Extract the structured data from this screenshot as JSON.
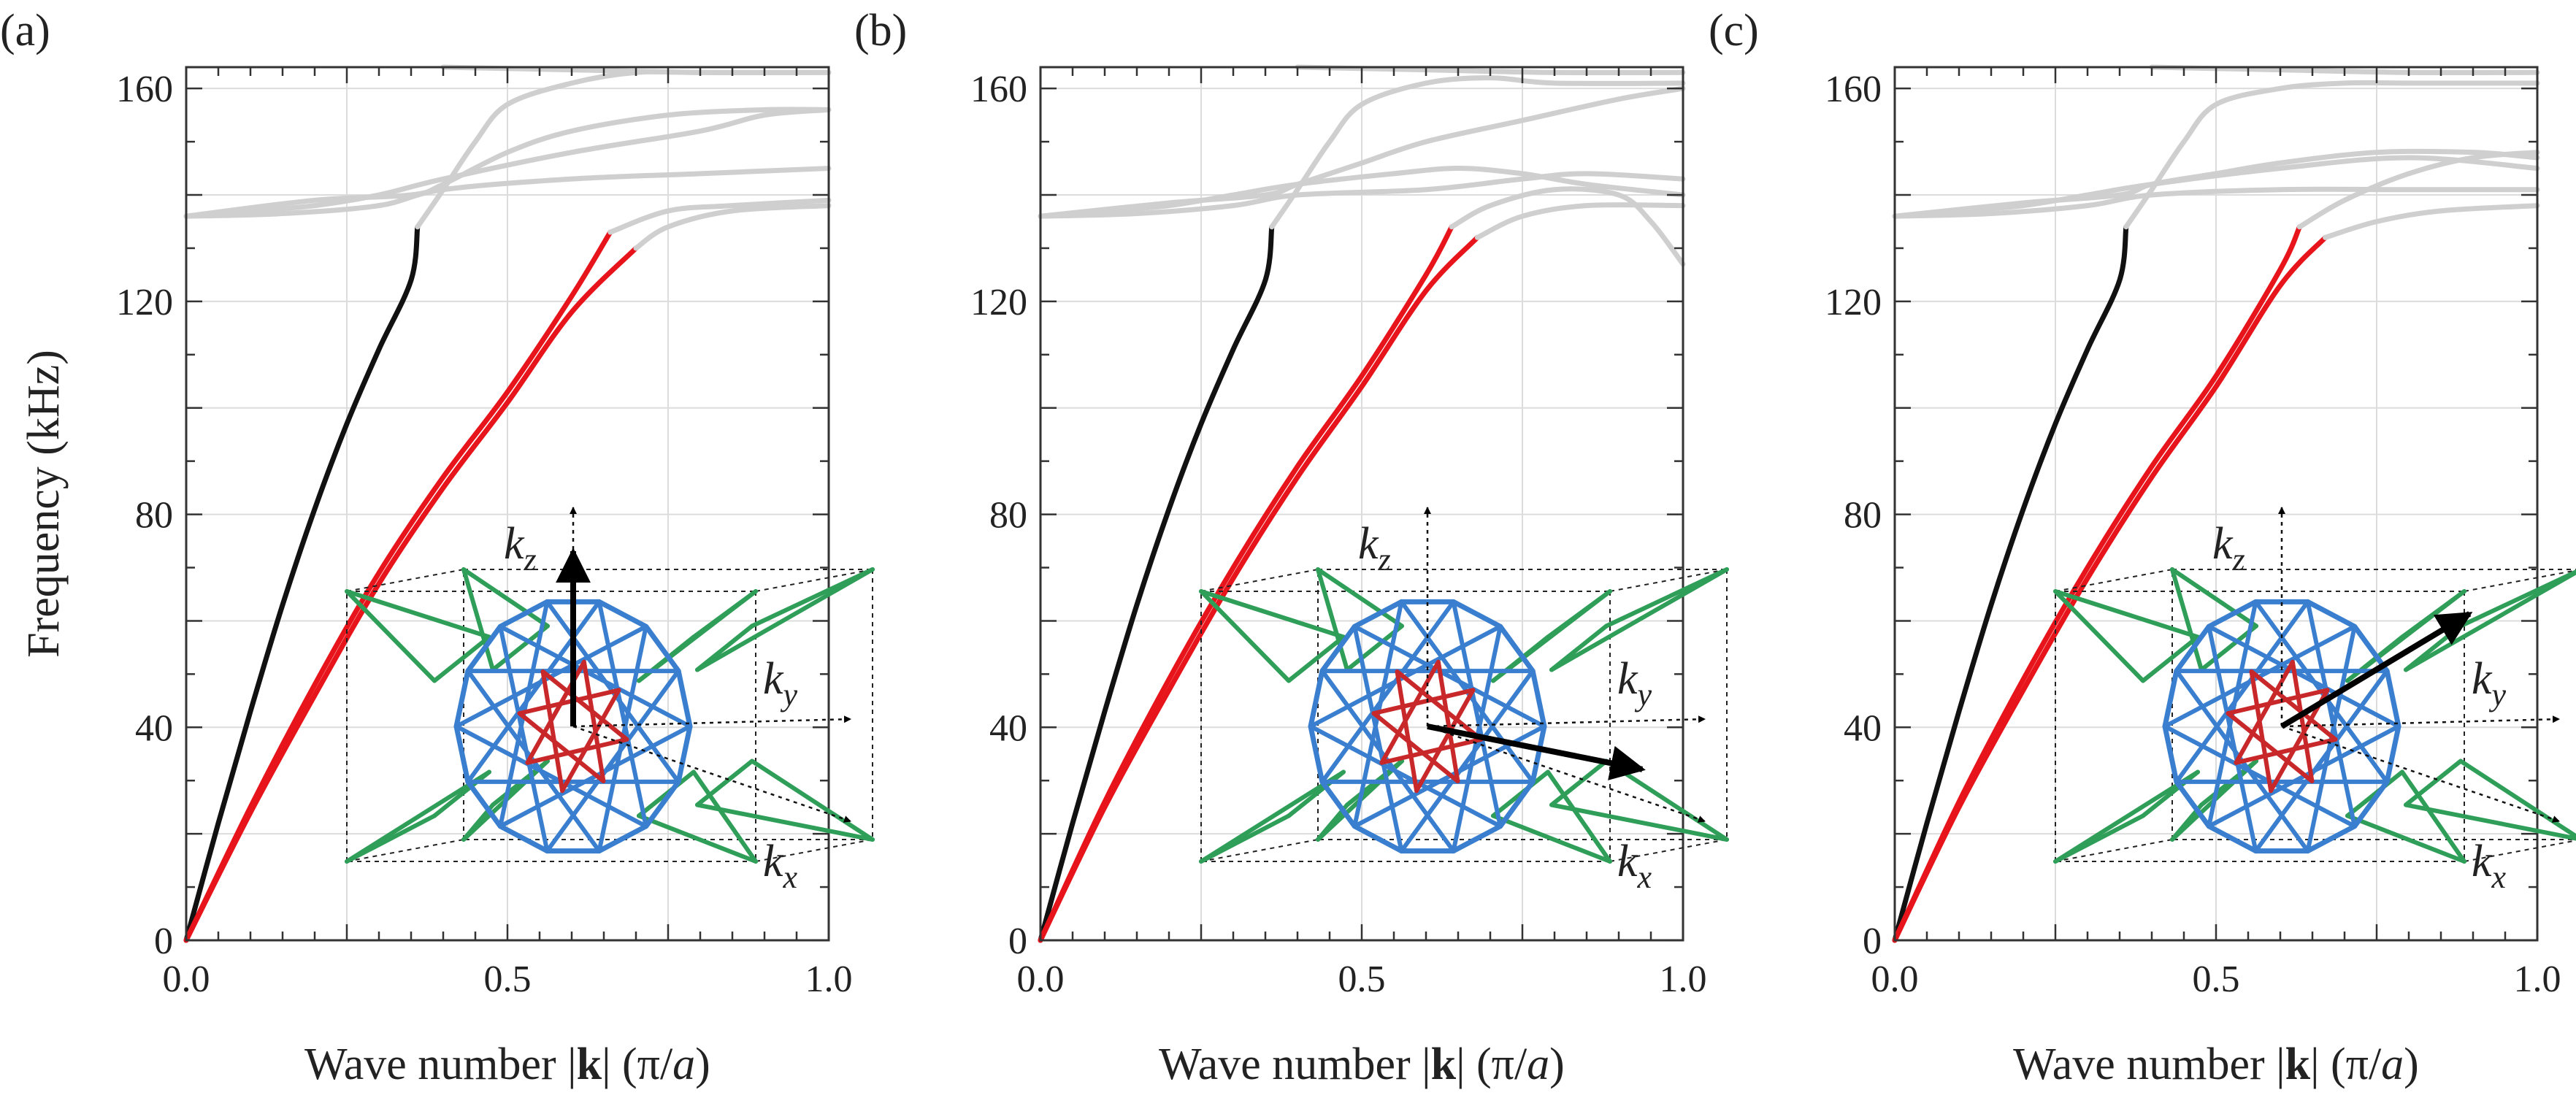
{
  "figure": {
    "y_axis_label": "Frequency (kHz)",
    "x_axis_label_parts": [
      "Wave number |",
      "k",
      "| (",
      "π",
      "/",
      "a",
      ")"
    ]
  },
  "colors": {
    "acoustic_branch": "#111111",
    "highlighted_branches": "#e8141b",
    "optical_branches": "#cfcfcf",
    "grid": "#dcdcdc",
    "axes": "#333333",
    "lattice_outer": "#2f9e58",
    "lattice_inner": "#3a7fcf",
    "lattice_core": "#c8282a"
  },
  "chart_data": [
    {
      "type": "line",
      "panel_label": "(a)",
      "direction": "k along z",
      "xlabel": "Wave number |k| (π/a)",
      "ylabel": "Frequency (kHz)",
      "xlim": [
        0,
        1.0
      ],
      "ylim": [
        0,
        164
      ],
      "x_ticks": [
        "0.0",
        "0.5",
        "1.0"
      ],
      "y_ticks": [
        "0",
        "40",
        "80",
        "120",
        "160"
      ],
      "grid": true,
      "inset_labels": {
        "kz": "k",
        "kz_sub": "z",
        "ky": "k",
        "ky_sub": "y",
        "kx": "k",
        "kx_sub": "x"
      },
      "inset_arrow": [
        0,
        1
      ],
      "series": [
        {
          "name": "acoustic-black",
          "color": "black",
          "x": [
            0,
            0.05,
            0.1,
            0.15,
            0.2,
            0.25,
            0.3,
            0.35,
            0.36
          ],
          "y": [
            0,
            22,
            43,
            63,
            81,
            97,
            111,
            124,
            134
          ]
        },
        {
          "name": "acoustic-red-1",
          "color": "red",
          "x": [
            0,
            0.1,
            0.2,
            0.3,
            0.4,
            0.5,
            0.6,
            0.66
          ],
          "y": [
            0,
            25,
            48,
            69,
            87,
            103,
            121,
            133
          ]
        },
        {
          "name": "acoustic-red-2",
          "color": "red",
          "x": [
            0,
            0.1,
            0.2,
            0.3,
            0.4,
            0.5,
            0.6,
            0.7
          ],
          "y": [
            0,
            24,
            46,
            67,
            85,
            101,
            118,
            130
          ]
        },
        {
          "name": "optical-1",
          "color": "gray",
          "x": [
            0.66,
            0.75,
            0.85,
            1.0
          ],
          "y": [
            133,
            137,
            138,
            139
          ]
        },
        {
          "name": "optical-2",
          "color": "gray",
          "x": [
            0.7,
            0.75,
            0.85,
            1.0
          ],
          "y": [
            130,
            134,
            137,
            138
          ]
        },
        {
          "name": "optical-3",
          "color": "gray",
          "x": [
            0,
            0.15,
            0.3,
            0.4,
            0.6,
            0.8,
            1.0
          ],
          "y": [
            136,
            136.5,
            138,
            141,
            143,
            144,
            145
          ]
        },
        {
          "name": "optical-4",
          "color": "gray",
          "x": [
            0,
            0.1,
            0.2,
            0.3,
            0.4,
            0.6,
            0.8,
            0.9,
            1.0
          ],
          "y": [
            136,
            137,
            138,
            140,
            143,
            148,
            152,
            155,
            156
          ]
        },
        {
          "name": "optical-5",
          "color": "gray",
          "x": [
            0,
            0.2,
            0.35,
            0.4,
            0.5,
            0.6,
            0.75,
            0.9,
            1.0
          ],
          "y": [
            136,
            139,
            140,
            142,
            148,
            152,
            155,
            156,
            156
          ]
        },
        {
          "name": "optical-6",
          "color": "gray",
          "x": [
            0.36,
            0.4,
            0.45,
            0.5,
            0.6,
            0.7,
            0.8,
            1.0
          ],
          "y": [
            134,
            141,
            150,
            157,
            161,
            163,
            163,
            163
          ]
        },
        {
          "name": "optical-7",
          "color": "gray",
          "x": [
            0.4,
            0.6,
            0.8,
            1.0
          ],
          "y": [
            164,
            163.5,
            163,
            163
          ]
        }
      ]
    },
    {
      "type": "line",
      "panel_label": "(b)",
      "direction": "k along x",
      "xlabel": "Wave number |k| (π/a)",
      "ylabel": "Frequency (kHz)",
      "xlim": [
        0,
        1.0
      ],
      "ylim": [
        0,
        164
      ],
      "x_ticks": [
        "0.0",
        "0.5",
        "1.0"
      ],
      "y_ticks": [
        "0",
        "40",
        "80",
        "120",
        "160"
      ],
      "grid": true,
      "inset_labels": {
        "kz": "k",
        "kz_sub": "z",
        "ky": "k",
        "ky_sub": "y",
        "kx": "k",
        "kx_sub": "x"
      },
      "inset_arrow": [
        1,
        -0.2
      ],
      "series": [
        {
          "name": "acoustic-black",
          "color": "black",
          "x": [
            0,
            0.05,
            0.1,
            0.15,
            0.2,
            0.25,
            0.3,
            0.35,
            0.36
          ],
          "y": [
            0,
            22,
            43,
            63,
            81,
            97,
            111,
            124,
            134
          ]
        },
        {
          "name": "acoustic-red-1",
          "color": "red",
          "x": [
            0,
            0.1,
            0.2,
            0.3,
            0.4,
            0.5,
            0.6,
            0.64
          ],
          "y": [
            0,
            26,
            49,
            70,
            89,
            106,
            125,
            134
          ]
        },
        {
          "name": "acoustic-red-2",
          "color": "red",
          "x": [
            0,
            0.1,
            0.2,
            0.3,
            0.4,
            0.5,
            0.6,
            0.68
          ],
          "y": [
            0,
            25,
            47,
            68,
            87,
            104,
            122,
            132
          ]
        },
        {
          "name": "optical-1",
          "color": "gray",
          "x": [
            0.64,
            0.7,
            0.8,
            0.9,
            0.95,
            1.0
          ],
          "y": [
            134,
            138,
            141,
            140,
            135,
            127
          ]
        },
        {
          "name": "optical-2",
          "color": "gray",
          "x": [
            0.68,
            0.75,
            0.85,
            1.0
          ],
          "y": [
            132,
            136,
            138,
            138
          ]
        },
        {
          "name": "optical-3",
          "color": "gray",
          "x": [
            0,
            0.15,
            0.3,
            0.4,
            0.6,
            0.75,
            0.85,
            1.0
          ],
          "y": [
            136,
            136.5,
            138,
            140,
            141,
            143,
            144,
            143
          ]
        },
        {
          "name": "optical-4",
          "color": "gray",
          "x": [
            0,
            0.1,
            0.2,
            0.3,
            0.4,
            0.55,
            0.65,
            0.75,
            0.85,
            1.0
          ],
          "y": [
            136,
            137,
            138,
            140,
            142,
            144,
            145,
            144,
            142,
            140
          ]
        },
        {
          "name": "optical-5",
          "color": "gray",
          "x": [
            0,
            0.2,
            0.35,
            0.4,
            0.5,
            0.6,
            0.75,
            0.9,
            1.0
          ],
          "y": [
            136,
            138.5,
            140,
            142,
            146,
            150,
            154,
            158,
            160
          ]
        },
        {
          "name": "optical-6",
          "color": "gray",
          "x": [
            0.36,
            0.4,
            0.45,
            0.5,
            0.6,
            0.7,
            0.8,
            1.0
          ],
          "y": [
            134,
            141,
            150,
            157,
            161,
            162,
            161,
            161
          ]
        },
        {
          "name": "optical-7",
          "color": "gray",
          "x": [
            0.4,
            0.6,
            0.8,
            1.0
          ],
          "y": [
            164,
            163.5,
            163,
            163
          ]
        }
      ]
    },
    {
      "type": "line",
      "panel_label": "(c)",
      "direction": "k along diagonal",
      "xlabel": "Wave number |k| (π/a)",
      "ylabel": "Frequency (kHz)",
      "xlim": [
        0,
        1.0
      ],
      "ylim": [
        0,
        164
      ],
      "x_ticks": [
        "0.0",
        "0.5",
        "1.0"
      ],
      "y_ticks": [
        "0",
        "40",
        "80",
        "120",
        "160"
      ],
      "grid": true,
      "inset_labels": {
        "kz": "k",
        "kz_sub": "z",
        "ky": "k",
        "ky_sub": "y",
        "kx": "k",
        "kx_sub": "x"
      },
      "inset_arrow": [
        1,
        0.6
      ],
      "series": [
        {
          "name": "acoustic-black",
          "color": "black",
          "x": [
            0,
            0.05,
            0.1,
            0.15,
            0.2,
            0.25,
            0.3,
            0.35,
            0.36
          ],
          "y": [
            0,
            22,
            43,
            63,
            81,
            97,
            111,
            124,
            134
          ]
        },
        {
          "name": "acoustic-red-1",
          "color": "red",
          "x": [
            0,
            0.1,
            0.2,
            0.3,
            0.4,
            0.5,
            0.6,
            0.63
          ],
          "y": [
            0,
            26,
            49,
            70,
            89,
            106,
            126,
            134
          ]
        },
        {
          "name": "acoustic-red-2",
          "color": "red",
          "x": [
            0,
            0.1,
            0.2,
            0.3,
            0.4,
            0.5,
            0.6,
            0.67
          ],
          "y": [
            0,
            25,
            47,
            68,
            87,
            104,
            123,
            132
          ]
        },
        {
          "name": "optical-1",
          "color": "gray",
          "x": [
            0.63,
            0.7,
            0.8,
            0.9,
            1.0
          ],
          "y": [
            134,
            139,
            144,
            147,
            148
          ]
        },
        {
          "name": "optical-2",
          "color": "gray",
          "x": [
            0.67,
            0.75,
            0.85,
            1.0
          ],
          "y": [
            132,
            135,
            137,
            138
          ]
        },
        {
          "name": "optical-3",
          "color": "gray",
          "x": [
            0,
            0.15,
            0.3,
            0.4,
            0.6,
            0.8,
            1.0
          ],
          "y": [
            136,
            136.5,
            138,
            140,
            141,
            141,
            141
          ]
        },
        {
          "name": "optical-4",
          "color": "gray",
          "x": [
            0,
            0.1,
            0.2,
            0.3,
            0.4,
            0.6,
            0.8,
            1.0
          ],
          "y": [
            136,
            137,
            138,
            140,
            142,
            145,
            147,
            145
          ]
        },
        {
          "name": "optical-5",
          "color": "gray",
          "x": [
            0,
            0.2,
            0.35,
            0.4,
            0.5,
            0.6,
            0.75,
            0.9,
            1.0
          ],
          "y": [
            136,
            138.5,
            140,
            142,
            144,
            146,
            148,
            148,
            147
          ]
        },
        {
          "name": "optical-6",
          "color": "gray",
          "x": [
            0.36,
            0.4,
            0.45,
            0.5,
            0.6,
            0.7,
            0.8,
            1.0
          ],
          "y": [
            134,
            141,
            150,
            157,
            160,
            161,
            161,
            161
          ]
        },
        {
          "name": "optical-7",
          "color": "gray",
          "x": [
            0.4,
            0.6,
            0.8,
            1.0
          ],
          "y": [
            164,
            163.5,
            163,
            163
          ]
        }
      ]
    }
  ]
}
